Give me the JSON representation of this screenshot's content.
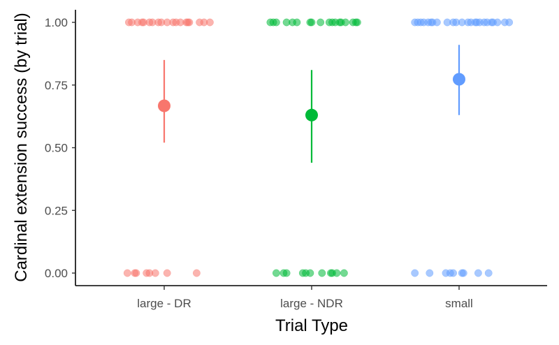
{
  "chart_data": {
    "type": "scatter",
    "xlabel": "Trial Type",
    "ylabel": "Cardinal extension success (by trial)",
    "categories": [
      "large - DR",
      "large - NDR",
      "small"
    ],
    "ylim": [
      -0.05,
      1.05
    ],
    "yticks": [
      "0.00",
      "0.25",
      "0.50",
      "0.75",
      "1.00"
    ],
    "ytick_values": [
      0,
      0.25,
      0.5,
      0.75,
      1.0
    ],
    "grid": false,
    "legend": "none",
    "series": [
      {
        "category": "large - DR",
        "color": "#F8766D",
        "mean": 0.667,
        "ci": [
          0.52,
          0.85
        ],
        "points": [
          {
            "x": -0.24,
            "y": 1
          },
          {
            "x": -0.22,
            "y": 1
          },
          {
            "x": -0.18,
            "y": 1
          },
          {
            "x": -0.14,
            "y": 1
          },
          {
            "x": -0.15,
            "y": 1
          },
          {
            "x": -0.1,
            "y": 1
          },
          {
            "x": -0.08,
            "y": 1
          },
          {
            "x": -0.04,
            "y": 1
          },
          {
            "x": -0.02,
            "y": 1
          },
          {
            "x": 0.02,
            "y": 1
          },
          {
            "x": 0.06,
            "y": 1
          },
          {
            "x": 0.08,
            "y": 1
          },
          {
            "x": 0.11,
            "y": 1
          },
          {
            "x": 0.15,
            "y": 1
          },
          {
            "x": 0.17,
            "y": 1
          },
          {
            "x": 0.16,
            "y": 1
          },
          {
            "x": 0.24,
            "y": 1
          },
          {
            "x": 0.27,
            "y": 1
          },
          {
            "x": 0.31,
            "y": 1
          },
          {
            "x": -0.25,
            "y": 0
          },
          {
            "x": -0.2,
            "y": 0
          },
          {
            "x": -0.19,
            "y": 0
          },
          {
            "x": -0.12,
            "y": 0
          },
          {
            "x": -0.1,
            "y": 0
          },
          {
            "x": -0.06,
            "y": 0
          },
          {
            "x": 0.02,
            "y": 0
          },
          {
            "x": 0.22,
            "y": 0
          }
        ]
      },
      {
        "category": "large - NDR",
        "color": "#00BA38",
        "mean": 0.63,
        "ci": [
          0.44,
          0.81
        ],
        "points": [
          {
            "x": -0.28,
            "y": 1
          },
          {
            "x": -0.26,
            "y": 1
          },
          {
            "x": -0.24,
            "y": 1
          },
          {
            "x": -0.17,
            "y": 1
          },
          {
            "x": -0.13,
            "y": 1
          },
          {
            "x": -0.1,
            "y": 1
          },
          {
            "x": -0.01,
            "y": 1
          },
          {
            "x": 0.0,
            "y": 1
          },
          {
            "x": 0.06,
            "y": 1
          },
          {
            "x": 0.12,
            "y": 1
          },
          {
            "x": 0.14,
            "y": 1
          },
          {
            "x": 0.16,
            "y": 1
          },
          {
            "x": 0.19,
            "y": 1
          },
          {
            "x": 0.2,
            "y": 1
          },
          {
            "x": 0.23,
            "y": 1
          },
          {
            "x": 0.28,
            "y": 1
          },
          {
            "x": 0.3,
            "y": 1
          },
          {
            "x": 0.31,
            "y": 1
          },
          {
            "x": -0.24,
            "y": 0
          },
          {
            "x": -0.19,
            "y": 0
          },
          {
            "x": -0.17,
            "y": 0
          },
          {
            "x": -0.06,
            "y": 0
          },
          {
            "x": -0.04,
            "y": 0
          },
          {
            "x": -0.01,
            "y": 0
          },
          {
            "x": 0.07,
            "y": 0
          },
          {
            "x": 0.13,
            "y": 0
          },
          {
            "x": 0.14,
            "y": 0
          },
          {
            "x": 0.17,
            "y": 0
          },
          {
            "x": 0.22,
            "y": 0
          }
        ]
      },
      {
        "category": "small",
        "color": "#619CFF",
        "mean": 0.773,
        "ci": [
          0.63,
          0.91
        ],
        "points": [
          {
            "x": -0.3,
            "y": 1
          },
          {
            "x": -0.28,
            "y": 1
          },
          {
            "x": -0.26,
            "y": 1
          },
          {
            "x": -0.24,
            "y": 1
          },
          {
            "x": -0.21,
            "y": 1
          },
          {
            "x": -0.19,
            "y": 1
          },
          {
            "x": -0.18,
            "y": 1
          },
          {
            "x": -0.15,
            "y": 1
          },
          {
            "x": -0.08,
            "y": 1
          },
          {
            "x": -0.04,
            "y": 1
          },
          {
            "x": -0.02,
            "y": 1
          },
          {
            "x": 0.02,
            "y": 1
          },
          {
            "x": 0.06,
            "y": 1
          },
          {
            "x": 0.08,
            "y": 1
          },
          {
            "x": 0.11,
            "y": 1
          },
          {
            "x": 0.12,
            "y": 1
          },
          {
            "x": 0.14,
            "y": 1
          },
          {
            "x": 0.17,
            "y": 1
          },
          {
            "x": 0.19,
            "y": 1
          },
          {
            "x": 0.22,
            "y": 1
          },
          {
            "x": 0.23,
            "y": 1
          },
          {
            "x": 0.26,
            "y": 1
          },
          {
            "x": 0.31,
            "y": 1
          },
          {
            "x": 0.34,
            "y": 1
          },
          {
            "x": -0.3,
            "y": 0
          },
          {
            "x": -0.2,
            "y": 0
          },
          {
            "x": -0.09,
            "y": 0
          },
          {
            "x": -0.06,
            "y": 0
          },
          {
            "x": -0.04,
            "y": 0
          },
          {
            "x": 0.02,
            "y": 0
          },
          {
            "x": 0.03,
            "y": 0
          },
          {
            "x": 0.13,
            "y": 0
          },
          {
            "x": 0.2,
            "y": 0
          }
        ]
      }
    ]
  }
}
